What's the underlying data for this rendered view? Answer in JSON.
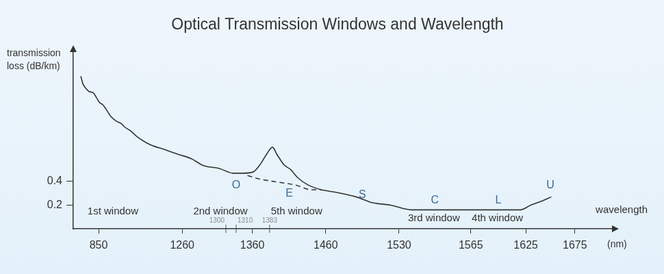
{
  "chart_data": {
    "type": "line",
    "title": "Optical Transmission Windows and Wavelength",
    "y_label": [
      "transmission",
      "loss (dB/km)"
    ],
    "x_label": "wavelength",
    "x_unit_label": "(nm)",
    "xlim": [
      780,
      1700
    ],
    "xticks": [
      850,
      1260,
      1360,
      1460,
      1530,
      1565,
      1625,
      1675
    ],
    "minor_xticks": [
      1300,
      1310,
      1383
    ],
    "ylim": [
      0,
      1.5
    ],
    "yticks": [
      0.2,
      0.4
    ],
    "grid": false,
    "legend": false,
    "series": [
      {
        "color": "#333333",
        "line_style": "solid",
        "x": [
          801,
          806,
          814,
          824,
          835,
          844,
          853,
          870,
          887,
          910,
          937,
          961,
          978,
          1005,
          1038,
          1072,
          1105,
          1173,
          1240,
          1269,
          1278,
          1281,
          1294,
          1307,
          1331,
          1361,
          1370,
          1379,
          1387,
          1393,
          1403,
          1412,
          1422,
          1436,
          1454,
          1469,
          1489,
          1505,
          1522,
          1536,
          1542,
          1556,
          1574,
          1604,
          1619,
          1630,
          1640,
          1651
        ],
        "values": [
          1.29,
          1.23,
          1.19,
          1.16,
          1.15,
          1.11,
          1.07,
          1.05,
          1.01,
          0.95,
          0.91,
          0.89,
          0.86,
          0.83,
          0.78,
          0.74,
          0.71,
          0.67,
          0.63,
          0.59,
          0.54,
          0.53,
          0.51,
          0.47,
          0.47,
          0.48,
          0.54,
          0.63,
          0.69,
          0.63,
          0.54,
          0.5,
          0.43,
          0.37,
          0.33,
          0.31,
          0.27,
          0.22,
          0.2,
          0.16,
          0.16,
          0.16,
          0.16,
          0.16,
          0.16,
          0.2,
          0.23,
          0.27
        ]
      },
      {
        "color": "#333333",
        "line_style": "dashed",
        "x": [
          1345,
          1370,
          1389,
          1418,
          1441,
          1454
        ],
        "values": [
          0.45,
          0.42,
          0.4,
          0.37,
          0.33,
          0.33
        ]
      }
    ],
    "bands": [
      {
        "name": "O",
        "start": 1260,
        "end": 1360
      },
      {
        "name": "E",
        "start": 1360,
        "end": 1460
      },
      {
        "name": "S",
        "start": 1460,
        "end": 1530
      },
      {
        "name": "C",
        "start": 1530,
        "end": 1565
      },
      {
        "name": "L",
        "start": 1565,
        "end": 1625
      },
      {
        "name": "U",
        "start": 1625,
        "end": 1675
      }
    ],
    "windows": [
      {
        "name": "1st window",
        "x": 920
      },
      {
        "name": "2nd window",
        "x": 1295
      },
      {
        "name": "5th window",
        "x": 1420
      },
      {
        "name": "3rd window",
        "x": 1547
      },
      {
        "name": "4th window",
        "x": 1594
      }
    ]
  }
}
